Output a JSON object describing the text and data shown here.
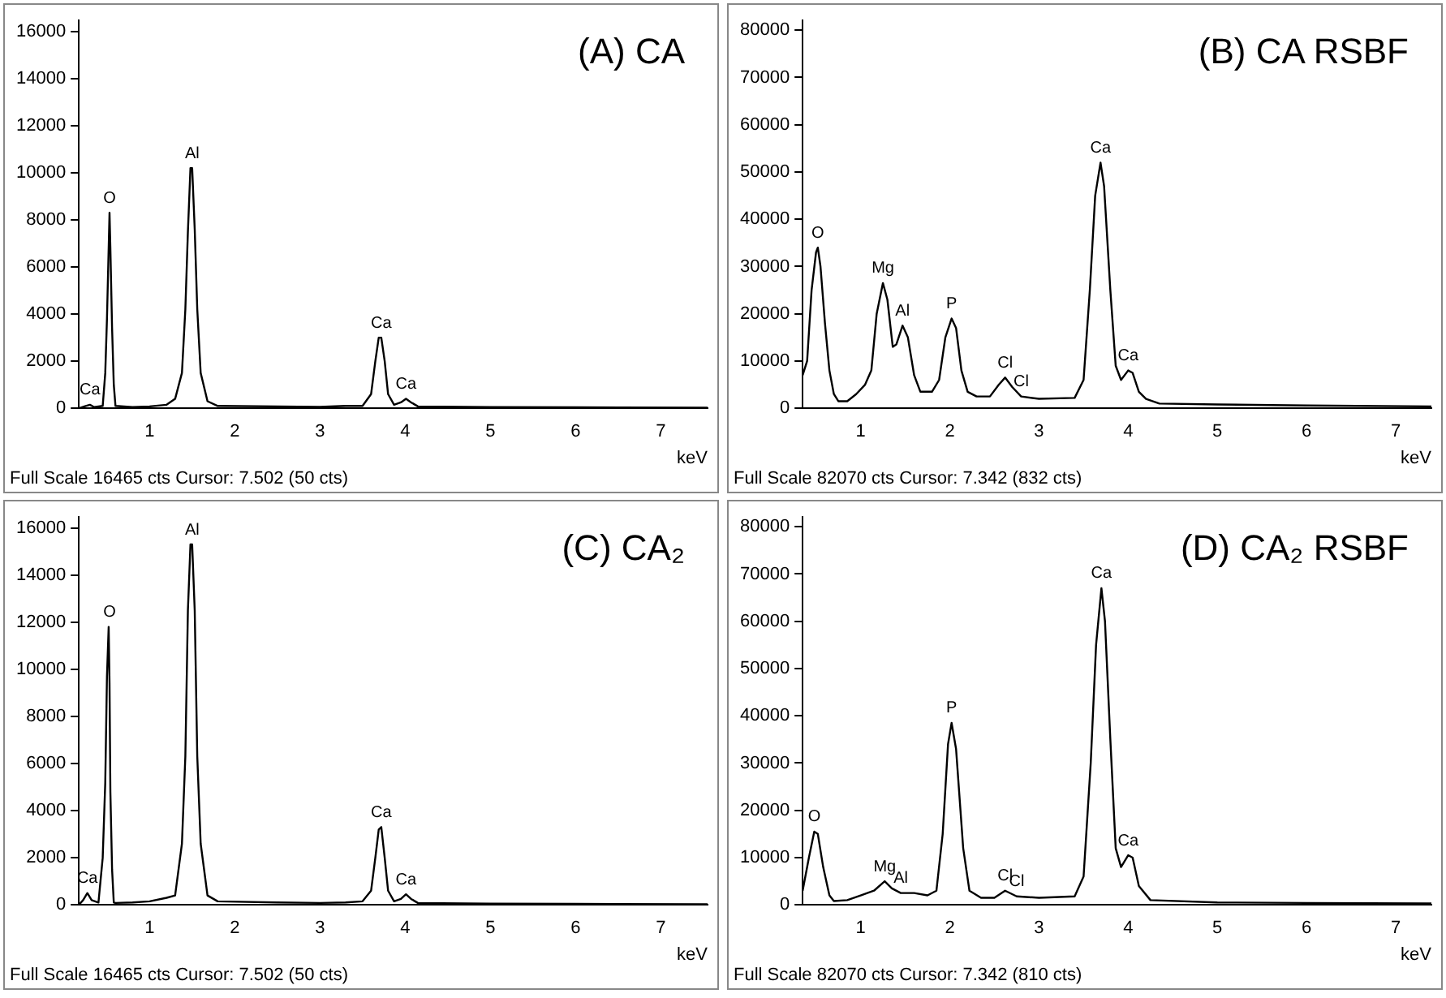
{
  "chart_data": [
    {
      "type": "line",
      "title": "(A) CA",
      "xlabel": "keV",
      "xlim": [
        0.17,
        7.55
      ],
      "xticks": [
        1,
        2,
        3,
        4,
        5,
        6,
        7
      ],
      "ylim": [
        0,
        16465
      ],
      "yticks": [
        0,
        2000,
        4000,
        6000,
        8000,
        10000,
        12000,
        14000,
        16000
      ],
      "grid": false,
      "legend": false,
      "marker": "none",
      "series": [
        {
          "color": "#000000",
          "x": [
            0.17,
            0.25,
            0.3,
            0.35,
            0.45,
            0.48,
            0.5,
            0.52,
            0.53,
            0.54,
            0.56,
            0.58,
            0.6,
            0.8,
            1.0,
            1.2,
            1.3,
            1.38,
            1.42,
            1.45,
            1.48,
            1.5,
            1.53,
            1.56,
            1.6,
            1.68,
            1.8,
            2.5,
            3.0,
            3.3,
            3.5,
            3.6,
            3.65,
            3.69,
            3.72,
            3.76,
            3.8,
            3.87,
            3.95,
            4.01,
            4.07,
            4.15,
            5,
            6,
            7.55
          ],
          "values": [
            0,
            100,
            150,
            50,
            100,
            1500,
            3800,
            6800,
            8300,
            6800,
            3400,
            1000,
            100,
            50,
            80,
            150,
            400,
            1500,
            4200,
            7500,
            10200,
            10200,
            7600,
            4200,
            1500,
            300,
            100,
            80,
            60,
            100,
            100,
            600,
            2000,
            3000,
            3000,
            2000,
            600,
            150,
            250,
            400,
            250,
            80,
            50,
            40,
            30
          ]
        }
      ],
      "annotations": [
        {
          "text": "Ca",
          "x": 0.3,
          "y": 150
        },
        {
          "text": "O",
          "x": 0.53,
          "y": 8300
        },
        {
          "text": "Al",
          "x": 1.5,
          "y": 10200
        },
        {
          "text": "Ca",
          "x": 3.72,
          "y": 3000
        },
        {
          "text": "Ca",
          "x": 4.01,
          "y": 400
        },
        "Full Scale 16465 cts Cursor: 7.502  (50 cts)"
      ]
    },
    {
      "type": "line",
      "title": "(B) CA RSBF",
      "xlabel": "keV",
      "xlim": [
        0.35,
        7.4
      ],
      "xticks": [
        1,
        2,
        3,
        4,
        5,
        6,
        7
      ],
      "ylim": [
        0,
        82070
      ],
      "yticks": [
        0,
        10000,
        20000,
        30000,
        40000,
        50000,
        60000,
        70000,
        80000
      ],
      "grid": false,
      "legend": false,
      "marker": "none",
      "series": [
        {
          "color": "#000000",
          "x": [
            0.35,
            0.4,
            0.45,
            0.5,
            0.52,
            0.55,
            0.6,
            0.65,
            0.7,
            0.75,
            0.85,
            0.95,
            1.05,
            1.12,
            1.18,
            1.25,
            1.3,
            1.36,
            1.4,
            1.47,
            1.53,
            1.6,
            1.67,
            1.8,
            1.88,
            1.95,
            2.02,
            2.07,
            2.13,
            2.2,
            2.3,
            2.45,
            2.55,
            2.62,
            2.7,
            2.8,
            3.0,
            3.4,
            3.5,
            3.57,
            3.63,
            3.69,
            3.73,
            3.8,
            3.86,
            3.92,
            4.0,
            4.05,
            4.12,
            4.2,
            4.35,
            5,
            6,
            7.4
          ],
          "values": [
            7000,
            10000,
            25000,
            33000,
            34000,
            30000,
            18000,
            8000,
            3000,
            1500,
            1500,
            3000,
            5000,
            8000,
            20000,
            26500,
            23000,
            13000,
            13500,
            17500,
            15000,
            7000,
            3500,
            3500,
            6000,
            15000,
            19000,
            17000,
            8000,
            3500,
            2500,
            2500,
            5000,
            6500,
            4500,
            2500,
            2000,
            2200,
            6000,
            25000,
            45000,
            52000,
            47000,
            25000,
            9000,
            6000,
            8000,
            7500,
            3500,
            2000,
            1000,
            800,
            600,
            400
          ]
        }
      ],
      "annotations": [
        {
          "text": "O",
          "x": 0.52,
          "y": 34000
        },
        {
          "text": "Mg",
          "x": 1.25,
          "y": 26500
        },
        {
          "text": "Al",
          "x": 1.47,
          "y": 17500
        },
        {
          "text": "P",
          "x": 2.02,
          "y": 19000
        },
        {
          "text": "Cl",
          "x": 2.62,
          "y": 6500
        },
        {
          "text": "Cl",
          "x": 2.8,
          "y": 2500
        },
        {
          "text": "Ca",
          "x": 3.69,
          "y": 52000
        },
        {
          "text": "Ca",
          "x": 4.0,
          "y": 8000
        },
        "Full Scale 82070 cts Cursor: 7.342  (832 cts)"
      ]
    },
    {
      "type": "line",
      "title": "(C) CA₂",
      "xlabel": "keV",
      "xlim": [
        0.17,
        7.55
      ],
      "xticks": [
        1,
        2,
        3,
        4,
        5,
        6,
        7
      ],
      "ylim": [
        0,
        16465
      ],
      "yticks": [
        0,
        2000,
        4000,
        6000,
        8000,
        10000,
        12000,
        14000,
        16000
      ],
      "grid": false,
      "legend": false,
      "marker": "none",
      "series": [
        {
          "color": "#000000",
          "x": [
            0.17,
            0.22,
            0.27,
            0.32,
            0.4,
            0.45,
            0.48,
            0.5,
            0.52,
            0.53,
            0.54,
            0.56,
            0.58,
            0.6,
            0.8,
            1.0,
            1.2,
            1.3,
            1.38,
            1.42,
            1.45,
            1.48,
            1.5,
            1.53,
            1.56,
            1.6,
            1.68,
            1.8,
            2.5,
            3.0,
            3.3,
            3.5,
            3.6,
            3.65,
            3.69,
            3.72,
            3.76,
            3.8,
            3.87,
            3.95,
            4.01,
            4.07,
            4.15,
            5,
            6,
            7.55
          ],
          "values": [
            0,
            200,
            500,
            200,
            100,
            2000,
            5200,
            9700,
            11800,
            9400,
            4800,
            1500,
            100,
            80,
            100,
            150,
            300,
            400,
            2600,
            6300,
            12500,
            15300,
            15300,
            12500,
            6300,
            2600,
            400,
            150,
            100,
            80,
            100,
            150,
            600,
            2000,
            3200,
            3300,
            2000,
            600,
            150,
            250,
            450,
            250,
            80,
            50,
            40,
            30
          ]
        }
      ],
      "annotations": [
        {
          "text": "Ca",
          "x": 0.27,
          "y": 500
        },
        {
          "text": "O",
          "x": 0.53,
          "y": 11800
        },
        {
          "text": "Al",
          "x": 1.5,
          "y": 15300
        },
        {
          "text": "Ca",
          "x": 3.72,
          "y": 3300
        },
        {
          "text": "Ca",
          "x": 4.01,
          "y": 450
        },
        "Full Scale 16465 cts Cursor: 7.502  (50 cts)"
      ]
    },
    {
      "type": "line",
      "title": "(D) CA₂ RSBF",
      "xlabel": "keV",
      "xlim": [
        0.35,
        7.4
      ],
      "xticks": [
        1,
        2,
        3,
        4,
        5,
        6,
        7
      ],
      "ylim": [
        0,
        82070
      ],
      "yticks": [
        0,
        10000,
        20000,
        30000,
        40000,
        50000,
        60000,
        70000,
        80000
      ],
      "grid": false,
      "legend": false,
      "marker": "none",
      "series": [
        {
          "color": "#000000",
          "x": [
            0.35,
            0.42,
            0.48,
            0.52,
            0.58,
            0.65,
            0.7,
            0.85,
            1.0,
            1.15,
            1.27,
            1.35,
            1.45,
            1.6,
            1.75,
            1.85,
            1.92,
            1.98,
            2.02,
            2.07,
            2.15,
            2.22,
            2.35,
            2.5,
            2.62,
            2.75,
            3.0,
            3.4,
            3.5,
            3.58,
            3.64,
            3.7,
            3.74,
            3.8,
            3.86,
            3.92,
            4.0,
            4.05,
            4.12,
            4.25,
            5,
            6,
            7.4
          ],
          "values": [
            3000,
            10000,
            15500,
            15000,
            8000,
            2000,
            800,
            1000,
            2000,
            3000,
            5000,
            3500,
            2500,
            2500,
            2000,
            3000,
            15000,
            34000,
            38500,
            33000,
            12000,
            3000,
            1500,
            1500,
            3000,
            1800,
            1500,
            1800,
            6000,
            30000,
            55000,
            67000,
            60000,
            35000,
            12000,
            8000,
            10500,
            10000,
            4000,
            1000,
            500,
            400,
            300
          ]
        }
      ],
      "annotations": [
        {
          "text": "O",
          "x": 0.48,
          "y": 15500
        },
        {
          "text": "Mg",
          "x": 1.27,
          "y": 5000
        },
        {
          "text": "Al",
          "x": 1.45,
          "y": 2500
        },
        {
          "text": "P",
          "x": 2.02,
          "y": 38500
        },
        {
          "text": "Cl",
          "x": 2.62,
          "y": 3000
        },
        {
          "text": "Cl",
          "x": 2.75,
          "y": 1800
        },
        {
          "text": "Ca",
          "x": 3.7,
          "y": 67000
        },
        {
          "text": "Ca",
          "x": 4.0,
          "y": 10500
        },
        "Full Scale 82070 cts Cursor: 7.342  (810 cts)"
      ]
    }
  ]
}
